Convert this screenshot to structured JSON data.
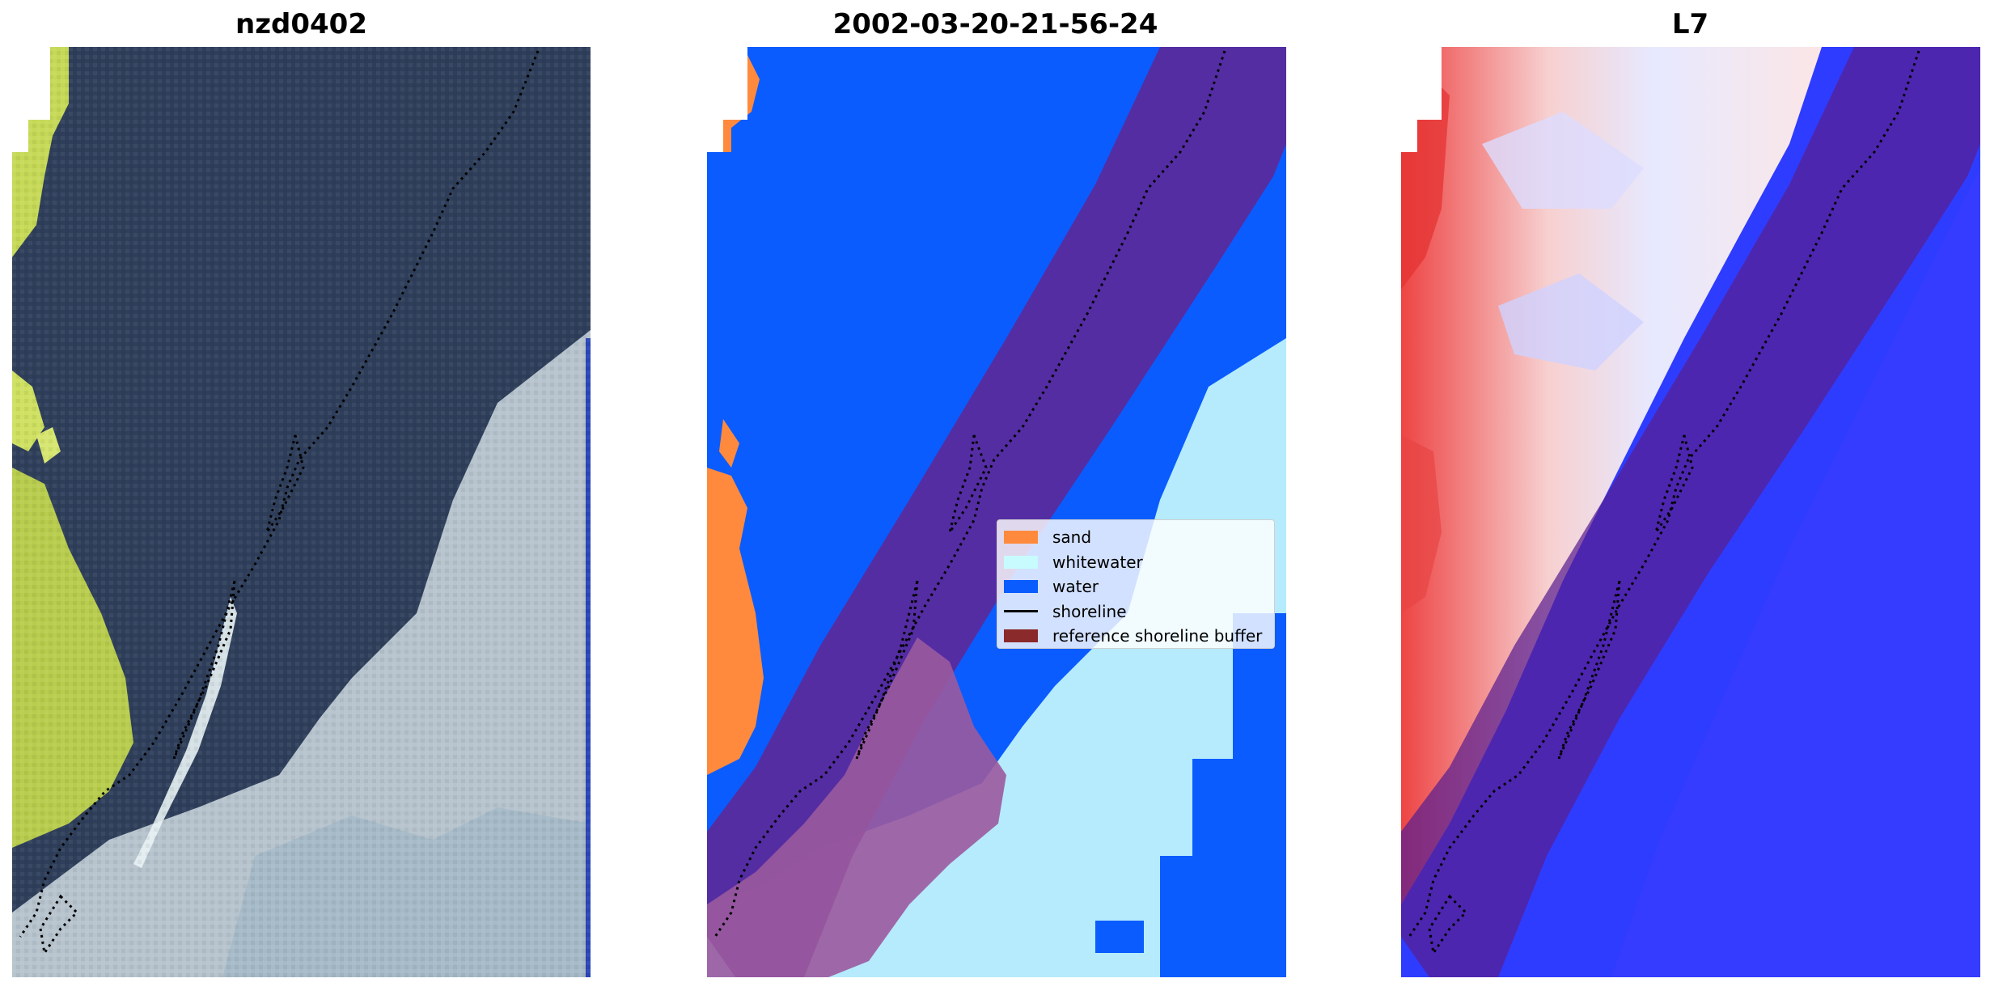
{
  "panels": [
    {
      "title": "nzd0402"
    },
    {
      "title": "2002-03-20-21-56-24"
    },
    {
      "title": "L7"
    }
  ],
  "legend": {
    "items": [
      {
        "label": "sand",
        "color": "#ff8a3d",
        "kind": "patch"
      },
      {
        "label": "whitewater",
        "color": "#c8fbfd",
        "kind": "patch"
      },
      {
        "label": "water",
        "color": "#0a5cff",
        "kind": "patch"
      },
      {
        "label": "shoreline",
        "color": "#000000",
        "kind": "line"
      },
      {
        "label": "reference shoreline buffer",
        "color": "#8b2a2a",
        "kind": "patch"
      }
    ]
  },
  "colors": {
    "water_class": "#0a5cff",
    "whitewater_class": "#c8fbfd",
    "sand_class": "#ff8a3d",
    "buffer_overlay": "#6a1fa0",
    "rgb_dark_water": "#2e3f5c",
    "rgb_whitewater": "#b9c6cf",
    "rgb_vegetation": "#c9dc55",
    "index_high": "#e81b1b",
    "index_low": "#1f2cff"
  }
}
